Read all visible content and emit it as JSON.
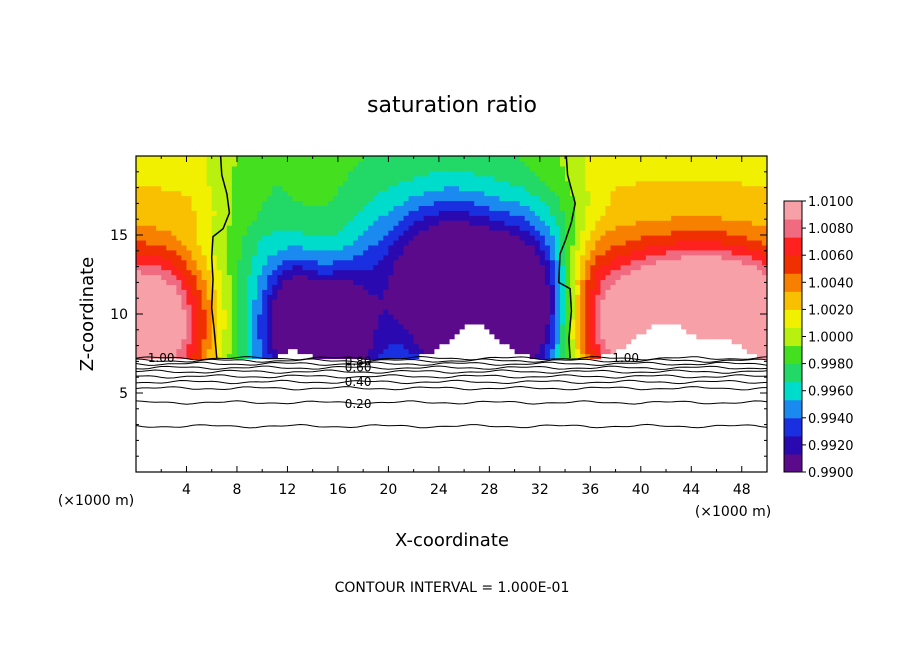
{
  "chart_data": {
    "type": "heatmap",
    "title": "saturation ratio",
    "xlabel": "X-coordinate",
    "ylabel": "Z-coordinate",
    "x_unit_left": "(×1000 m)",
    "x_unit_right": "(×1000 m)",
    "xlim": [
      0,
      50
    ],
    "ylim": [
      0,
      20
    ],
    "x_ticks": [
      4,
      8,
      12,
      16,
      20,
      24,
      28,
      32,
      36,
      40,
      44,
      48
    ],
    "x_tick_labels": [
      "4",
      "8",
      "12",
      "16",
      "20",
      "24",
      "28",
      "32",
      "36",
      "40",
      "44",
      "48"
    ],
    "y_ticks": [
      5,
      10,
      15
    ],
    "y_tick_labels": [
      "5",
      "10",
      "15"
    ],
    "colorbar": {
      "min": 0.99,
      "max": 1.01,
      "labels": [
        "1.0100",
        "1.0080",
        "1.0060",
        "1.0040",
        "1.0020",
        "1.0000",
        "0.9980",
        "0.9960",
        "0.9940",
        "0.9920",
        "0.9900"
      ],
      "colors": [
        "#5a0a8a",
        "#2a0ab0",
        "#1a30e0",
        "#1a8af0",
        "#00dccc",
        "#22d866",
        "#44e020",
        "#b8f010",
        "#f0f000",
        "#f8c000",
        "#f88000",
        "#f03000",
        "#ff2020",
        "#f06a80",
        "#f8a0a8"
      ]
    },
    "footer": "CONTOUR INTERVAL = 1.000E-01",
    "contour_labels": [
      {
        "text": "1.00",
        "x": 2.0,
        "y": 7.2
      },
      {
        "text": "1.00",
        "x": 38.8,
        "y": 7.2
      },
      {
        "text": "0.80",
        "x": 17.6,
        "y": 7.0
      },
      {
        "text": "0.60",
        "x": 17.6,
        "y": 6.6
      },
      {
        "text": "0.40",
        "x": 17.6,
        "y": 5.7
      },
      {
        "text": "0.20",
        "x": 17.6,
        "y": 4.3
      }
    ],
    "contours_below": [
      {
        "level": 1.0,
        "z": 7.2
      },
      {
        "level": 0.9,
        "z": 7.05
      },
      {
        "level": 0.8,
        "z": 6.85
      },
      {
        "level": 0.7,
        "z": 6.6
      },
      {
        "level": 0.6,
        "z": 6.35
      },
      {
        "level": 0.5,
        "z": 6.05
      },
      {
        "level": 0.4,
        "z": 5.7
      },
      {
        "level": 0.3,
        "z": 5.3
      },
      {
        "level": 0.2,
        "z": 4.4
      },
      {
        "level": 0.1,
        "z": 2.9
      }
    ],
    "unity_contours": [
      {
        "name": "left",
        "points": [
          [
            6.7,
            20
          ],
          [
            6.8,
            18.8
          ],
          [
            7.2,
            17.6
          ],
          [
            7.4,
            16.4
          ],
          [
            6.9,
            15.4
          ],
          [
            6.1,
            14.9
          ],
          [
            6.0,
            13.6
          ],
          [
            6.1,
            12.2
          ],
          [
            6.0,
            10.4
          ],
          [
            6.2,
            9.0
          ],
          [
            6.4,
            7.2
          ]
        ]
      },
      {
        "name": "right",
        "points": [
          [
            34.1,
            20
          ],
          [
            34.2,
            18.8
          ],
          [
            34.8,
            17.0
          ],
          [
            34.5,
            15.8
          ],
          [
            34.0,
            14.6
          ],
          [
            33.6,
            13.8
          ],
          [
            33.5,
            12.0
          ],
          [
            34.4,
            11.6
          ],
          [
            34.5,
            10.2
          ],
          [
            34.3,
            8.4
          ],
          [
            34.4,
            7.2
          ]
        ]
      }
    ],
    "field": {
      "base_z": 7.2,
      "wet_regions": [
        {
          "cx": 0,
          "cz": 9.5,
          "sx": 4,
          "sz": 3,
          "amp": 0.012
        },
        {
          "cx": 42,
          "cz": 9.8,
          "sx": 6,
          "sz": 3,
          "amp": 0.011
        },
        {
          "cx": 47,
          "cz": 9.0,
          "sx": 4,
          "sz": 3,
          "amp": 0.01
        }
      ],
      "dry_regions": [
        {
          "cx": 12.7,
          "cz": 9.6,
          "sx": 1.6,
          "sz": 2.8,
          "amp": 0.01
        },
        {
          "cx": 16.0,
          "cz": 9.0,
          "sx": 1.6,
          "sz": 2.8,
          "amp": 0.009
        },
        {
          "cx": 27.0,
          "cz": 10.5,
          "sx": 3.5,
          "sz": 4.0,
          "amp": 0.012
        },
        {
          "cx": 23.0,
          "cz": 12.5,
          "sx": 3.0,
          "sz": 3.5,
          "amp": 0.006
        },
        {
          "cx": 31.0,
          "cz": 11.0,
          "sx": 2.2,
          "sz": 3.0,
          "amp": 0.007
        }
      ]
    }
  }
}
